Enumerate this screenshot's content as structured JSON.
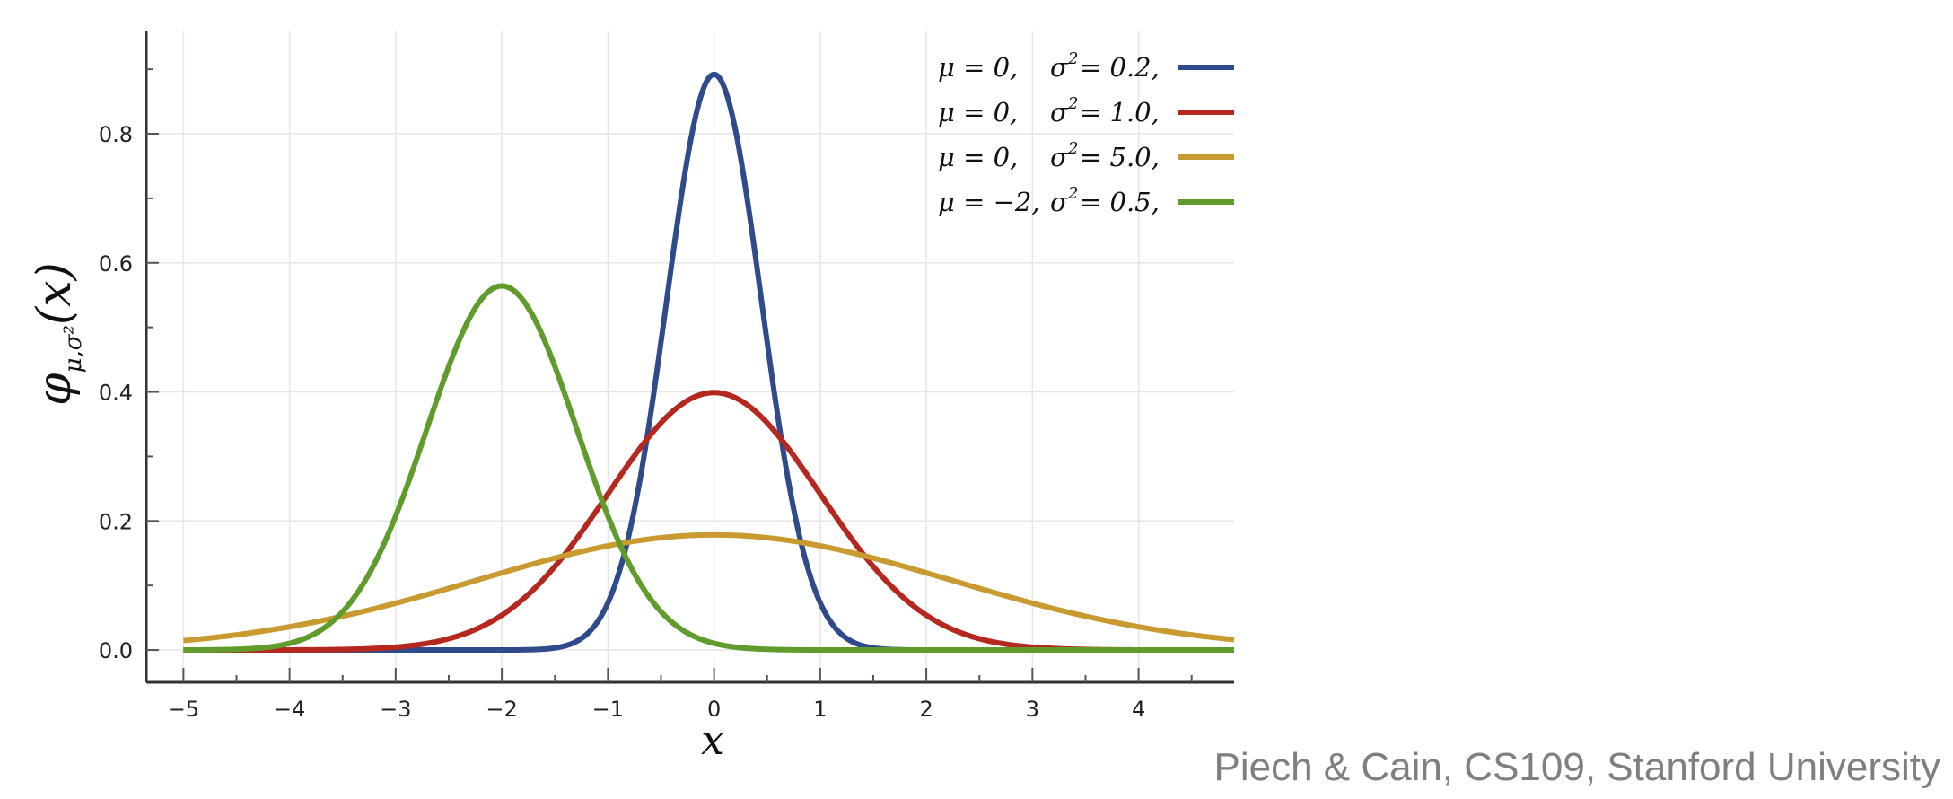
{
  "chart_data": {
    "type": "line",
    "xlabel": "x",
    "ylabel": "φμ,σ²(x)",
    "ylabel_parts": {
      "base": "φ",
      "sub": "μ,σ²",
      "arg": "(x)"
    },
    "xlim": [
      -5.35,
      4.9
    ],
    "ylim": [
      -0.05,
      0.96
    ],
    "x_ticks": [
      -5,
      -4,
      -3,
      -2,
      -1,
      0,
      1,
      2,
      3,
      4
    ],
    "x_tick_labels": [
      "−5",
      "−4",
      "−3",
      "−2",
      "−1",
      "0",
      "1",
      "2",
      "3",
      "4"
    ],
    "y_ticks": [
      0.0,
      0.2,
      0.4,
      0.6,
      0.8
    ],
    "y_tick_labels": [
      "0.0",
      "0.2",
      "0.4",
      "0.6",
      "0.8"
    ],
    "grid": true,
    "legend_position": "top-right",
    "series": [
      {
        "mu": 0,
        "sigma2": 0.2,
        "color": "#2f4b8c",
        "legend": {
          "mu_text": "μ = 0,",
          "sigma_text": "σ",
          "sup": "2",
          "value_text": "= 0.2,"
        },
        "peak": [
          0,
          0.892
        ]
      },
      {
        "mu": 0,
        "sigma2": 1.0,
        "color": "#b5281f",
        "legend": {
          "mu_text": "μ = 0,",
          "sigma_text": "σ",
          "sup": "2",
          "value_text": "= 1.0,"
        },
        "peak": [
          0,
          0.399
        ]
      },
      {
        "mu": 0,
        "sigma2": 5.0,
        "color": "#c99a30",
        "legend": {
          "mu_text": "μ = 0,",
          "sigma_text": "σ",
          "sup": "2",
          "value_text": "= 5.0,"
        },
        "peak": [
          0,
          0.178
        ]
      },
      {
        "mu": -2,
        "sigma2": 0.5,
        "color": "#5f9c2b",
        "legend": {
          "mu_text": "μ = −2,",
          "sigma_text": "σ",
          "sup": "2",
          "value_text": "= 0.5,"
        },
        "peak": [
          -2,
          0.564
        ]
      }
    ]
  },
  "credit": "Piech & Cain, CS109, Stanford University"
}
